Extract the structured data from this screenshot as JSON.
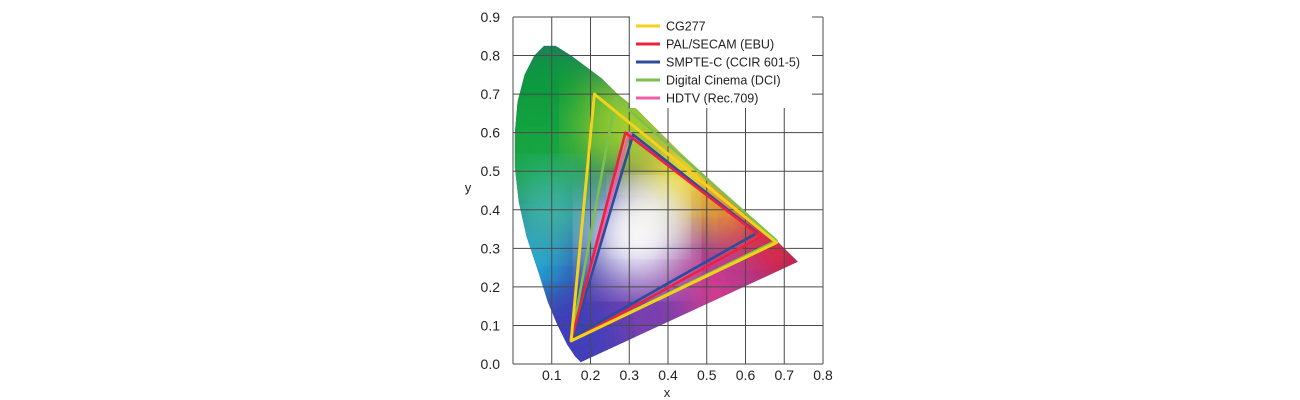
{
  "chart_data": {
    "type": "scatter",
    "title": "",
    "xlabel": "x",
    "ylabel": "y",
    "xlim": [
      0,
      0.8
    ],
    "ylim": [
      0,
      0.9
    ],
    "grid": true,
    "legend_position": "top-right",
    "x_ticks": [
      "0.1",
      "0.2",
      "0.3",
      "0.4",
      "0.5",
      "0.6",
      "0.7",
      "0.8"
    ],
    "y_ticks": [
      "0.0",
      "0.1",
      "0.2",
      "0.3",
      "0.4",
      "0.5",
      "0.6",
      "0.7",
      "0.8",
      "0.9"
    ],
    "x_tick_values": [
      0.1,
      0.2,
      0.3,
      0.4,
      0.5,
      0.6,
      0.7,
      0.8
    ],
    "y_tick_values": [
      0.0,
      0.1,
      0.2,
      0.3,
      0.4,
      0.5,
      0.6,
      0.7,
      0.8,
      0.9
    ],
    "spectral_locus": [
      [
        0.175,
        0.005
      ],
      [
        0.16,
        0.02
      ],
      [
        0.14,
        0.05
      ],
      [
        0.115,
        0.1
      ],
      [
        0.09,
        0.16
      ],
      [
        0.065,
        0.24
      ],
      [
        0.035,
        0.33
      ],
      [
        0.015,
        0.42
      ],
      [
        0.005,
        0.51
      ],
      [
        0.005,
        0.6
      ],
      [
        0.012,
        0.68
      ],
      [
        0.03,
        0.75
      ],
      [
        0.055,
        0.8
      ],
      [
        0.08,
        0.825
      ],
      [
        0.11,
        0.825
      ],
      [
        0.15,
        0.8
      ],
      [
        0.19,
        0.77
      ],
      [
        0.23,
        0.74
      ],
      [
        0.27,
        0.7
      ],
      [
        0.32,
        0.66
      ],
      [
        0.37,
        0.61
      ],
      [
        0.43,
        0.55
      ],
      [
        0.5,
        0.485
      ],
      [
        0.56,
        0.43
      ],
      [
        0.62,
        0.375
      ],
      [
        0.67,
        0.33
      ],
      [
        0.72,
        0.28
      ],
      [
        0.735,
        0.265
      ]
    ],
    "series": [
      {
        "name": "CG277",
        "color": "#f3d21b",
        "points": [
          [
            0.21,
            0.7
          ],
          [
            0.68,
            0.315
          ],
          [
            0.15,
            0.06
          ]
        ]
      },
      {
        "name": "PAL/SECAM (EBU)",
        "color": "#e8223f",
        "points": [
          [
            0.29,
            0.6
          ],
          [
            0.64,
            0.33
          ],
          [
            0.15,
            0.06
          ]
        ]
      },
      {
        "name": "SMPTE-C (CCIR 601-5)",
        "color": "#2a4d9c",
        "points": [
          [
            0.31,
            0.595
          ],
          [
            0.63,
            0.34
          ],
          [
            0.155,
            0.07
          ]
        ]
      },
      {
        "name": "Digital Cinema (DCI)",
        "color": "#7cc24a",
        "points": [
          [
            0.265,
            0.69
          ],
          [
            0.68,
            0.32
          ],
          [
            0.15,
            0.06
          ]
        ]
      },
      {
        "name": "HDTV (Rec.709)",
        "color": "#ee5fa7",
        "points": [
          [
            0.3,
            0.6
          ],
          [
            0.64,
            0.33
          ],
          [
            0.15,
            0.06
          ]
        ]
      }
    ]
  }
}
